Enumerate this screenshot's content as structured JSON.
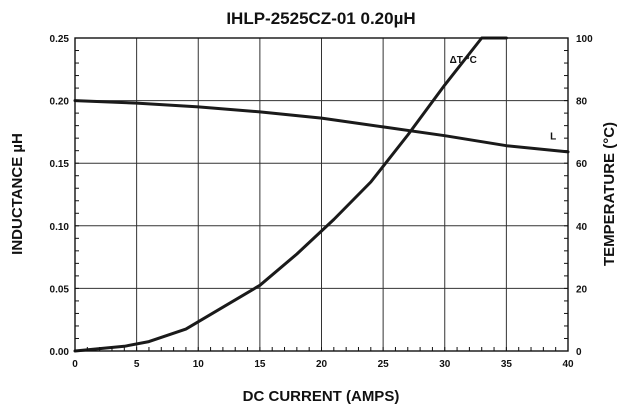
{
  "chart_data": {
    "type": "line",
    "title": "IHLP-2525CZ-01 0.20µH",
    "xlabel": "DC CURRENT (AMPS)",
    "ylabel": "INDUCTANCE µH",
    "y2label": "TEMPERATURE (°C)",
    "xlim": [
      0,
      40
    ],
    "ylim": [
      0,
      0.25
    ],
    "y2lim": [
      0,
      100
    ],
    "x_ticks": [
      "0",
      "5",
      "10",
      "15",
      "20",
      "25",
      "30",
      "35",
      "40"
    ],
    "y_ticks": [
      "0.00",
      "0.05",
      "0.10",
      "0.15",
      "0.20",
      "0.25"
    ],
    "y2_ticks": [
      "0",
      "20",
      "40",
      "60",
      "80",
      "100"
    ],
    "grid": true,
    "series": [
      {
        "name": "L",
        "axis": "left",
        "x": [
          0,
          5,
          10,
          15,
          20,
          25,
          30,
          35,
          40
        ],
        "values": [
          0.2,
          0.198,
          0.195,
          0.191,
          0.186,
          0.179,
          0.172,
          0.164,
          0.159
        ]
      },
      {
        "name": "ΔT °C",
        "axis": "right",
        "x": [
          0,
          4,
          6,
          9,
          12,
          15,
          18,
          21,
          24,
          27,
          30,
          33,
          35
        ],
        "values": [
          0,
          1.5,
          3,
          7,
          14,
          21,
          31,
          42,
          54,
          69,
          85,
          100,
          100
        ]
      }
    ]
  }
}
